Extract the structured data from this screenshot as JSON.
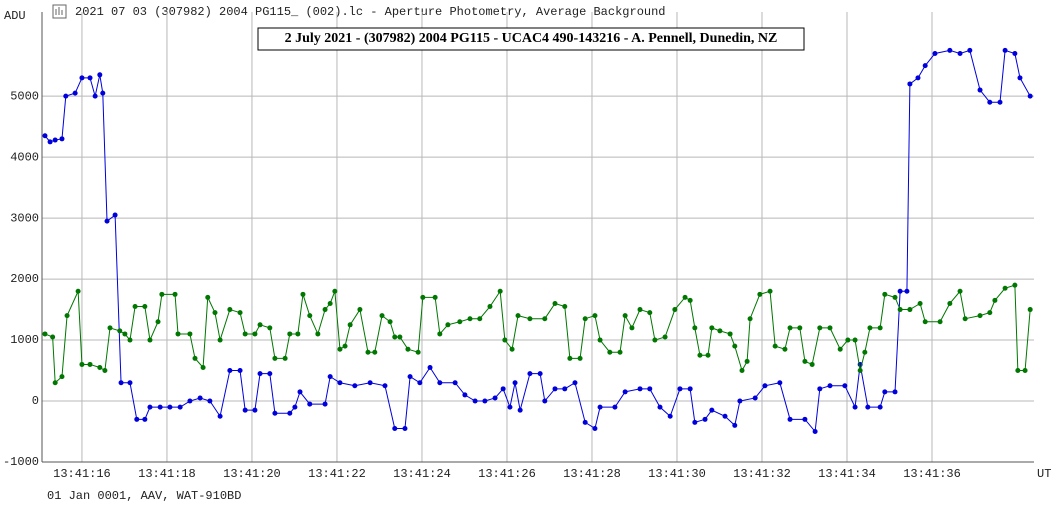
{
  "header": "2021 07 03 (307982) 2004 PG115_ (002).lc - Aperture Photometry, Average Background",
  "footer": "01 Jan 0001, AAV, WAT-910BD",
  "chart_data": {
    "type": "line",
    "title": "2 July 2021 - (307982) 2004 PG115 - UCAC4 490-143216 - A. Pennell, Dunedin, NZ",
    "y_label": "ADU",
    "x_label": "UT",
    "xlim": [
      15.06,
      38.4
    ],
    "ylim": [
      -1000,
      6380
    ],
    "xticks": [
      {
        "value": 16,
        "label": "13:41:16"
      },
      {
        "value": 18,
        "label": "13:41:18"
      },
      {
        "value": 20,
        "label": "13:41:20"
      },
      {
        "value": 22,
        "label": "13:41:22"
      },
      {
        "value": 24,
        "label": "13:41:24"
      },
      {
        "value": 26,
        "label": "13:41:26"
      },
      {
        "value": 28,
        "label": "13:41:28"
      },
      {
        "value": 30,
        "label": "13:41:30"
      },
      {
        "value": 32,
        "label": "13:41:32"
      },
      {
        "value": 34,
        "label": "13:41:34"
      },
      {
        "value": 36,
        "label": "13:41:36"
      }
    ],
    "yticks": [
      -1000,
      0,
      1000,
      2000,
      3000,
      4000,
      5000
    ],
    "grid": true,
    "series": [
      {
        "color": "#0000dd",
        "x": [
          15.13,
          15.25,
          15.37,
          15.53,
          15.62,
          15.84,
          16.0,
          16.19,
          16.31,
          16.42,
          16.49,
          16.59,
          16.78,
          16.92,
          17.13,
          17.29,
          17.48,
          17.6,
          17.84,
          18.07,
          18.31,
          18.54,
          18.78,
          19.01,
          19.25,
          19.48,
          19.72,
          19.84,
          20.07,
          20.19,
          20.42,
          20.54,
          20.89,
          21.01,
          21.13,
          21.36,
          21.72,
          21.84,
          22.07,
          22.42,
          22.78,
          23.13,
          23.36,
          23.6,
          23.72,
          23.95,
          24.19,
          24.42,
          24.78,
          25.01,
          25.25,
          25.48,
          25.72,
          25.91,
          26.07,
          26.19,
          26.31,
          26.54,
          26.78,
          26.89,
          27.13,
          27.36,
          27.6,
          27.84,
          28.07,
          28.19,
          28.54,
          28.78,
          29.13,
          29.36,
          29.6,
          29.84,
          30.07,
          30.31,
          30.42,
          30.66,
          30.82,
          31.13,
          31.36,
          31.48,
          31.84,
          32.07,
          32.42,
          32.66,
          33.01,
          33.25,
          33.36,
          33.6,
          33.95,
          34.19,
          34.31,
          34.49,
          34.78,
          34.89,
          35.13,
          35.25,
          35.41,
          35.48,
          35.67,
          35.84,
          36.07,
          36.42,
          36.66,
          36.89,
          37.13,
          37.36,
          37.6,
          37.72,
          37.95,
          38.07,
          38.31
        ],
        "values": [
          4350,
          4250,
          4280,
          4300,
          5000,
          5050,
          5300,
          5300,
          5000,
          5350,
          5050,
          2950,
          3050,
          300,
          300,
          -300,
          -300,
          -100,
          -100,
          -100,
          -100,
          0,
          50,
          0,
          -250,
          500,
          500,
          -150,
          -150,
          450,
          450,
          -200,
          -200,
          -100,
          150,
          -50,
          -50,
          400,
          300,
          250,
          300,
          250,
          -450,
          -450,
          400,
          300,
          550,
          300,
          300,
          100,
          0,
          0,
          50,
          200,
          -100,
          300,
          -150,
          450,
          450,
          0,
          200,
          200,
          300,
          -350,
          -450,
          -100,
          -100,
          150,
          200,
          200,
          -100,
          -250,
          200,
          200,
          -350,
          -300,
          -150,
          -250,
          -400,
          0,
          50,
          250,
          300,
          -300,
          -300,
          -500,
          200,
          250,
          250,
          -100,
          600,
          -100,
          -100,
          150,
          150,
          1800,
          1800,
          5200,
          5300,
          5500,
          5700,
          5750,
          5700,
          5750,
          5100,
          4900,
          4900,
          5750,
          5700,
          5300,
          5000
        ]
      },
      {
        "color": "#007700",
        "x": [
          15.13,
          15.31,
          15.37,
          15.53,
          15.65,
          15.91,
          16.0,
          16.19,
          16.42,
          16.54,
          16.66,
          16.89,
          17.01,
          17.13,
          17.25,
          17.48,
          17.6,
          17.79,
          17.88,
          18.19,
          18.26,
          18.54,
          18.66,
          18.85,
          18.96,
          19.13,
          19.25,
          19.48,
          19.72,
          19.84,
          20.07,
          20.19,
          20.42,
          20.54,
          20.78,
          20.89,
          21.08,
          21.2,
          21.36,
          21.55,
          21.72,
          21.84,
          21.95,
          22.07,
          22.19,
          22.31,
          22.54,
          22.73,
          22.89,
          23.06,
          23.25,
          23.36,
          23.48,
          23.67,
          23.91,
          24.02,
          24.31,
          24.42,
          24.61,
          24.89,
          25.13,
          25.36,
          25.6,
          25.84,
          25.95,
          26.12,
          26.26,
          26.54,
          26.89,
          27.13,
          27.36,
          27.48,
          27.72,
          27.84,
          28.07,
          28.19,
          28.42,
          28.66,
          28.78,
          28.94,
          29.13,
          29.36,
          29.48,
          29.72,
          29.95,
          30.19,
          30.31,
          30.42,
          30.54,
          30.73,
          30.82,
          31.01,
          31.25,
          31.36,
          31.53,
          31.65,
          31.72,
          31.95,
          32.19,
          32.31,
          32.54,
          32.66,
          32.89,
          33.01,
          33.18,
          33.36,
          33.6,
          33.84,
          34.02,
          34.19,
          34.31,
          34.42,
          34.54,
          34.78,
          34.89,
          35.13,
          35.25,
          35.48,
          35.72,
          35.84,
          36.19,
          36.42,
          36.66,
          36.78,
          37.13,
          37.36,
          37.48,
          37.72,
          37.95,
          38.02,
          38.19,
          38.31
        ],
        "values": [
          1100,
          1050,
          300,
          400,
          1400,
          1800,
          600,
          600,
          550,
          500,
          1200,
          1150,
          1100,
          1000,
          1550,
          1550,
          1000,
          1300,
          1750,
          1750,
          1100,
          1100,
          700,
          550,
          1700,
          1450,
          1000,
          1500,
          1450,
          1100,
          1100,
          1250,
          1200,
          700,
          700,
          1100,
          1100,
          1750,
          1400,
          1100,
          1500,
          1600,
          1800,
          850,
          900,
          1250,
          1500,
          800,
          800,
          1400,
          1300,
          1050,
          1050,
          850,
          800,
          1700,
          1700,
          1100,
          1250,
          1300,
          1350,
          1350,
          1550,
          1800,
          1000,
          850,
          1400,
          1350,
          1350,
          1600,
          1550,
          700,
          700,
          1350,
          1400,
          1000,
          800,
          800,
          1400,
          1200,
          1500,
          1450,
          1000,
          1050,
          1500,
          1700,
          1650,
          1200,
          750,
          750,
          1200,
          1150,
          1100,
          900,
          500,
          650,
          1350,
          1750,
          1800,
          900,
          850,
          1200,
          1200,
          650,
          600,
          1200,
          1200,
          850,
          1000,
          1000,
          500,
          800,
          1200,
          1200,
          1750,
          1700,
          1500,
          1500,
          1600,
          1300,
          1300,
          1600,
          1800,
          1350,
          1400,
          1450,
          1650,
          1850,
          1900,
          500,
          500,
          1500
        ]
      }
    ]
  }
}
